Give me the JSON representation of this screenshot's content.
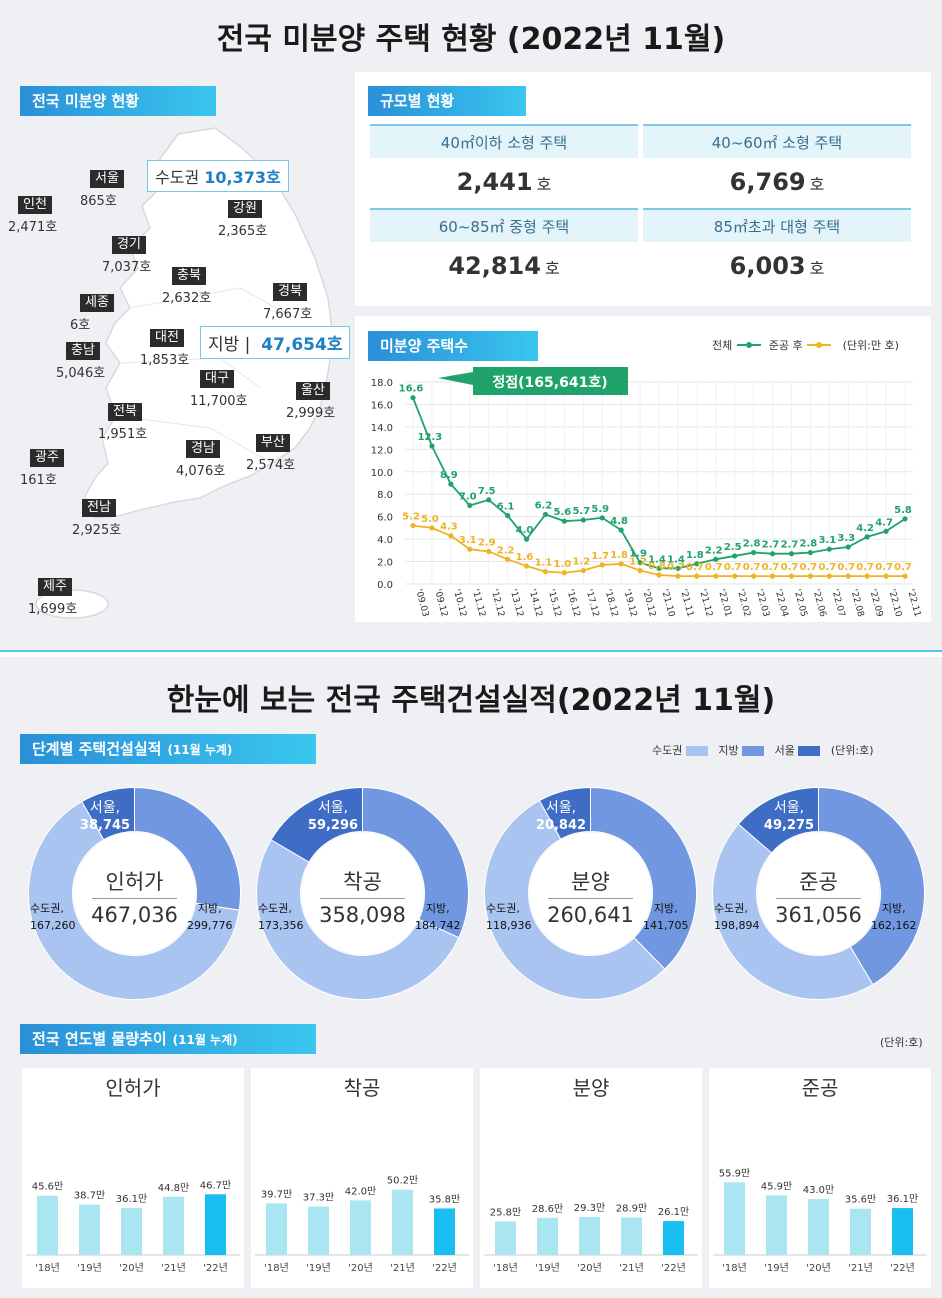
{
  "top_title": "전국 미분양 주택 현황 (2022년 11월)",
  "bottom_title": "한눈에 보는 전국 주택건설실적(2022년 11월)",
  "map": {
    "tag": "전국 미분양 현황",
    "regions": [
      {
        "name": "서울",
        "value": "865호"
      },
      {
        "name": "인천",
        "value": "2,471호"
      },
      {
        "name": "경기",
        "value": "7,037호"
      },
      {
        "name": "강원",
        "value": "2,365호"
      },
      {
        "name": "충북",
        "value": "2,632호"
      },
      {
        "name": "세종",
        "value": "6호"
      },
      {
        "name": "경북",
        "value": "7,667호"
      },
      {
        "name": "충남",
        "value": "5,046호"
      },
      {
        "name": "대전",
        "value": "1,853호"
      },
      {
        "name": "대구",
        "value": "11,700호"
      },
      {
        "name": "울산",
        "value": "2,999호"
      },
      {
        "name": "전북",
        "value": "1,951호"
      },
      {
        "name": "경남",
        "value": "4,076호"
      },
      {
        "name": "부산",
        "value": "2,574호"
      },
      {
        "name": "광주",
        "value": "161호"
      },
      {
        "name": "전남",
        "value": "2,925호"
      },
      {
        "name": "제주",
        "value": "1,699호"
      }
    ],
    "capital_label": "수도권",
    "capital_value": "10,373호",
    "local_label": "지방",
    "local_value": "47,654호"
  },
  "size_status": {
    "tag": "규모별 현황",
    "cells": [
      {
        "label": "40㎡이하 소형 주택",
        "value": "2,441",
        "unit": "호"
      },
      {
        "label": "40~60㎡ 소형 주택",
        "value": "6,769",
        "unit": "호"
      },
      {
        "label": "60~85㎡ 중형 주택",
        "value": "42,814",
        "unit": "호"
      },
      {
        "label": "85㎡초과 대형 주택",
        "value": "6,003",
        "unit": "호"
      }
    ]
  },
  "unsold_chart_meta": {
    "tag": "미분양 주택수",
    "legend_total": "전체",
    "legend_after": "준공 후",
    "unit": "(단위:만 호)",
    "peak_callout": "정점(165,641호)",
    "colors": {
      "total": "#1fa36a",
      "after": "#f0b323"
    }
  },
  "construction": {
    "tag": "단계별 주택건설실적",
    "tag_note": "(11월 누계)",
    "legend": [
      "수도권",
      "지방",
      "서울"
    ],
    "unit": "(단위:호)",
    "colors": {
      "capital": "#a9c4f0",
      "local": "#7097e0",
      "seoul": "#3f6cc5"
    }
  },
  "yearly": {
    "tag": "전국 연도별 물량추이",
    "tag_note": "(11월 누계)",
    "unit": "(단위:호)",
    "colors": {
      "past": "#a9e6f2",
      "current": "#19bff0"
    }
  },
  "chart_data": [
    {
      "type": "line",
      "title": "미분양 주택수",
      "ylabel": "(단위:만 호)",
      "ylim": [
        0,
        18
      ],
      "yticks": [
        "0.0",
        "2.0",
        "4.0",
        "6.0",
        "8.0",
        "10.0",
        "12.0",
        "14.0",
        "16.0",
        "18.0"
      ],
      "x": [
        "'09.03",
        "'09.12",
        "'10.12",
        "'11.12",
        "'12.12",
        "'13.12",
        "'14.12",
        "'15.12",
        "'16.12",
        "'17.12",
        "'18.12",
        "'19.12",
        "'20.12",
        "'21.10",
        "'21.11",
        "'21.12",
        "'22.01",
        "'22.02",
        "'22.03",
        "'22.04",
        "'22.05",
        "'22.06",
        "'22.07",
        "'22.08",
        "'22.09",
        "'22.10",
        "'22.11"
      ],
      "series": [
        {
          "name": "전체",
          "values": [
            16.6,
            12.3,
            8.9,
            7.0,
            7.5,
            6.1,
            4.0,
            6.2,
            5.6,
            5.7,
            5.9,
            4.8,
            1.9,
            1.4,
            1.4,
            1.8,
            2.2,
            2.5,
            2.8,
            2.7,
            2.7,
            2.8,
            3.1,
            3.3,
            4.2,
            4.7,
            5.8
          ],
          "labels": [
            "16.6",
            "12.3",
            "8.9",
            "7.0",
            "7.5",
            "6.1",
            "4.0",
            "6.2",
            "5.6",
            "5.7",
            "5.9",
            "4.8",
            "1.9",
            "1.4",
            "1.4",
            "1.8",
            "2.2",
            "2.5",
            "2.8",
            "2.7",
            "2.7",
            "2.8",
            "3.1",
            "3.3",
            "4.2",
            "4.7",
            "5.8"
          ]
        },
        {
          "name": "준공 후",
          "values": [
            5.2,
            5.0,
            4.3,
            3.1,
            2.9,
            2.2,
            1.6,
            1.1,
            1.0,
            1.2,
            1.7,
            1.8,
            1.2,
            0.8,
            0.7,
            0.7,
            0.7,
            0.7,
            0.7,
            0.7,
            0.7,
            0.7,
            0.7,
            0.7,
            0.7,
            0.7,
            0.7
          ],
          "labels": [
            "5.2",
            "5.0",
            "4.3",
            "3.1",
            "2.9",
            "2.2",
            "1.6",
            "1.1",
            "1.0",
            "1.2",
            "1.7",
            "1.8",
            "1.2",
            "0.8",
            "0.7",
            "0.7",
            "0.7",
            "0.7",
            "0.7",
            "0.7",
            "0.7",
            "0.7",
            "0.7",
            "0.7",
            "0.7",
            "0.7",
            "0.7"
          ]
        }
      ]
    },
    {
      "type": "pie",
      "title": "인허가",
      "total": "467,036",
      "slices": [
        {
          "name": "서울,",
          "value": 38745,
          "label": "38,745"
        },
        {
          "name": "수도권,",
          "value": 167260,
          "label": "167,260"
        },
        {
          "name": "지방,",
          "value": 299776,
          "label": "299,776"
        }
      ]
    },
    {
      "type": "pie",
      "title": "착공",
      "total": "358,098",
      "slices": [
        {
          "name": "서울,",
          "value": 59296,
          "label": "59,296"
        },
        {
          "name": "수도권,",
          "value": 173356,
          "label": "173,356"
        },
        {
          "name": "지방,",
          "value": 184742,
          "label": "184,742"
        }
      ]
    },
    {
      "type": "pie",
      "title": "분양",
      "total": "260,641",
      "slices": [
        {
          "name": "서울,",
          "value": 20842,
          "label": "20,842"
        },
        {
          "name": "수도권,",
          "value": 118936,
          "label": "118,936"
        },
        {
          "name": "지방,",
          "value": 141705,
          "label": "141,705"
        }
      ]
    },
    {
      "type": "pie",
      "title": "준공",
      "total": "361,056",
      "slices": [
        {
          "name": "서울,",
          "value": 49275,
          "label": "49,275"
        },
        {
          "name": "수도권,",
          "value": 198894,
          "label": "198,894"
        },
        {
          "name": "지방,",
          "value": 162162,
          "label": "162,162"
        }
      ]
    },
    {
      "type": "bar",
      "title": "인허가",
      "categories": [
        "'18년",
        "'19년",
        "'20년",
        "'21년",
        "'22년"
      ],
      "values": [
        45.6,
        38.7,
        36.1,
        44.8,
        46.7
      ],
      "labels": [
        "45.6만",
        "38.7만",
        "36.1만",
        "44.8만",
        "46.7만"
      ]
    },
    {
      "type": "bar",
      "title": "착공",
      "categories": [
        "'18년",
        "'19년",
        "'20년",
        "'21년",
        "'22년"
      ],
      "values": [
        39.7,
        37.3,
        42.0,
        50.2,
        35.8
      ],
      "labels": [
        "39.7만",
        "37.3만",
        "42.0만",
        "50.2만",
        "35.8만"
      ]
    },
    {
      "type": "bar",
      "title": "분양",
      "categories": [
        "'18년",
        "'19년",
        "'20년",
        "'21년",
        "'22년"
      ],
      "values": [
        25.8,
        28.6,
        29.3,
        28.9,
        26.1
      ],
      "labels": [
        "25.8만",
        "28.6만",
        "29.3만",
        "28.9만",
        "26.1만"
      ]
    },
    {
      "type": "bar",
      "title": "준공",
      "categories": [
        "'18년",
        "'19년",
        "'20년",
        "'21년",
        "'22년"
      ],
      "values": [
        55.9,
        45.9,
        43.0,
        35.6,
        36.1
      ],
      "labels": [
        "55.9만",
        "45.9만",
        "43.0만",
        "35.6만",
        "36.1만"
      ]
    }
  ]
}
